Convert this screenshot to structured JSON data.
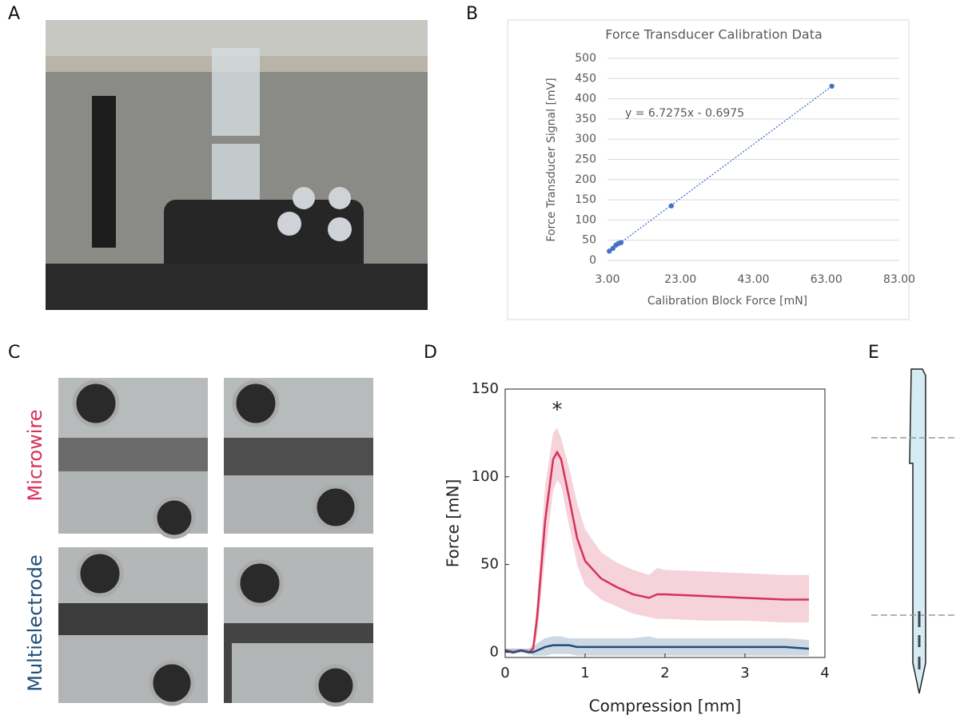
{
  "panel_labels": [
    "A",
    "B",
    "C",
    "D",
    "E"
  ],
  "photo_labels": [
    "Microwire",
    "Multielectrode"
  ],
  "chart_data": [
    {
      "type": "scatter",
      "title": "Force Transducer Calibration Data",
      "xlabel": "Calibration Block Force [mN]",
      "ylabel": "Force Transducer Signal [mV]",
      "annotation": "y = 6.7275x - 0.6975",
      "x": [
        3.5,
        4.5,
        5.3,
        6,
        6.7,
        20.5,
        64.5
      ],
      "values": [
        23,
        30,
        38,
        42,
        44,
        135,
        431
      ],
      "color": "#4472c4",
      "xlim": [
        3,
        83
      ],
      "xticks": [
        {
          "value": 3,
          "label": "3.00"
        },
        {
          "value": 23,
          "label": "23.00"
        },
        {
          "value": 43,
          "label": "43.00"
        },
        {
          "value": 63,
          "label": "63.00"
        },
        {
          "value": 83,
          "label": "83.00"
        }
      ],
      "ylim": [
        0,
        500
      ],
      "yticks": [
        0,
        50,
        100,
        150,
        200,
        250,
        300,
        350,
        400,
        450,
        500
      ],
      "grid": true
    },
    {
      "type": "line",
      "xlabel": "Compression [mm]",
      "ylabel": "Force [mN]",
      "annotation": "*",
      "x": [
        0,
        0.1,
        0.2,
        0.3,
        0.35,
        0.4,
        0.5,
        0.6,
        0.65,
        0.7,
        0.8,
        0.9,
        1.0,
        1.2,
        1.4,
        1.6,
        1.8,
        1.9,
        2.0,
        2.5,
        3.0,
        3.5,
        3.8
      ],
      "series": [
        {
          "color": "#d6315a",
          "values": [
            1,
            0,
            1,
            0,
            2,
            20,
            75,
            110,
            114,
            110,
            88,
            65,
            52,
            42,
            37,
            33,
            31,
            33,
            33,
            32,
            31,
            30,
            30
          ],
          "upper": [
            2,
            2,
            2,
            2,
            5,
            30,
            95,
            125,
            128,
            122,
            105,
            85,
            70,
            57,
            51,
            47,
            44,
            48,
            47,
            46,
            45,
            44,
            44
          ],
          "lower": [
            0,
            -1,
            0,
            -1,
            0,
            10,
            55,
            92,
            98,
            95,
            72,
            50,
            38,
            30,
            26,
            22,
            20,
            19,
            19,
            18,
            18,
            17,
            17
          ]
        },
        {
          "color": "#1f4e79",
          "values": [
            1,
            0,
            1,
            0,
            0,
            1,
            3,
            4,
            4,
            4,
            4,
            3,
            3,
            3,
            3,
            3,
            3,
            3,
            3,
            3,
            3,
            3,
            2
          ],
          "upper": [
            2,
            2,
            2,
            2,
            3,
            5,
            8,
            9,
            9,
            9,
            8,
            8,
            8,
            8,
            8,
            8,
            9,
            8,
            8,
            8,
            8,
            8,
            7
          ],
          "lower": [
            0,
            -1,
            0,
            -1,
            -2,
            -2,
            -2,
            -1,
            -1,
            -1,
            -1,
            -2,
            -2,
            -2,
            -2,
            -2,
            -2,
            -2,
            -2,
            -2,
            -2,
            -2,
            -2
          ]
        }
      ],
      "xlim": [
        0,
        4
      ],
      "xticks": [
        0,
        1,
        2,
        3,
        4
      ],
      "ylim": [
        -3,
        150
      ],
      "yticks": [
        0,
        50,
        100,
        150
      ]
    }
  ]
}
